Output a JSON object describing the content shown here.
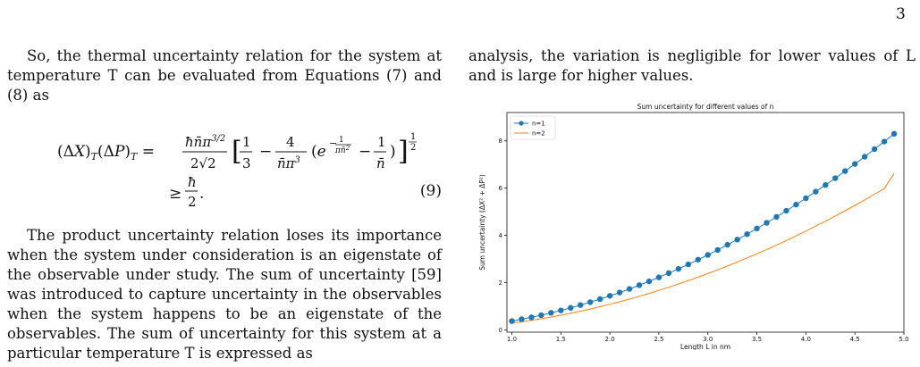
{
  "page": {
    "number": "3"
  },
  "left_column": {
    "para1": "So, the thermal uncertainty relation for the system at temperature T can be evaluated from Equations (7) and (8) as",
    "equation_number": "(9)",
    "para2": "The product uncertainty relation loses its importance when the system under consideration is an eigenstate of the observable under study. The sum of uncertainty [59] was introduced to capture uncertainty in the observables when the system happens to be an eigenstate of the observables. The sum of uncertainty for this system at a particular temperature T is expressed as"
  },
  "right_column": {
    "para1": "analysis, the variation is negligible for lower values of L and is large for higher values."
  },
  "chart_data": {
    "type": "line",
    "title": "Sum uncertainty for different values of n",
    "xlabel": "Length L in nm",
    "ylabel": "Sum uncertainty (ΔX² + ΔP²)",
    "xlim": [
      0.95,
      5.0
    ],
    "ylim": [
      -0.1,
      9.2
    ],
    "xticks": [
      "1.0",
      "1.5",
      "2.0",
      "2.5",
      "3.0",
      "3.5",
      "4.0",
      "4.5",
      "5.0"
    ],
    "yticks": [
      "0",
      "2",
      "4",
      "6",
      "8"
    ],
    "legend_position": "top-left",
    "series": [
      {
        "name": "n=1",
        "color": "#1f77b4",
        "marker": "circle",
        "x": [
          1.0,
          1.1,
          1.2,
          1.3,
          1.4,
          1.5,
          1.6,
          1.7,
          1.8,
          1.9,
          2.0,
          2.1,
          2.2,
          2.3,
          2.4,
          2.5,
          2.6,
          2.7,
          2.8,
          2.9,
          3.0,
          3.1,
          3.2,
          3.3,
          3.4,
          3.5,
          3.6,
          3.7,
          3.8,
          3.9,
          4.0,
          4.1,
          4.2,
          4.3,
          4.4,
          4.5,
          4.6,
          4.7,
          4.8,
          4.9
        ],
        "y": [
          0.37,
          0.45,
          0.53,
          0.62,
          0.72,
          0.82,
          0.93,
          1.05,
          1.17,
          1.3,
          1.44,
          1.58,
          1.73,
          1.89,
          2.05,
          2.22,
          2.4,
          2.58,
          2.77,
          2.97,
          3.17,
          3.38,
          3.6,
          3.82,
          4.05,
          4.29,
          4.53,
          4.78,
          5.04,
          5.3,
          5.57,
          5.85,
          6.13,
          6.42,
          6.72,
          7.02,
          7.33,
          7.65,
          7.97,
          8.3
        ]
      },
      {
        "name": "n=2",
        "color": "#ff7f0e",
        "marker": "none",
        "x": [
          1.0,
          1.1,
          1.2,
          1.3,
          1.4,
          1.5,
          1.6,
          1.7,
          1.8,
          1.9,
          2.0,
          2.1,
          2.2,
          2.3,
          2.4,
          2.5,
          2.6,
          2.7,
          2.8,
          2.9,
          3.0,
          3.1,
          3.2,
          3.3,
          3.4,
          3.5,
          3.6,
          3.7,
          3.8,
          3.9,
          4.0,
          4.1,
          4.2,
          4.3,
          4.4,
          4.5,
          4.6,
          4.7,
          4.8,
          4.9
        ],
        "y": [
          0.28,
          0.34,
          0.4,
          0.47,
          0.54,
          0.62,
          0.7,
          0.79,
          0.88,
          0.98,
          1.08,
          1.19,
          1.3,
          1.42,
          1.54,
          1.67,
          1.8,
          1.94,
          2.08,
          2.23,
          2.38,
          2.54,
          2.7,
          2.87,
          3.04,
          3.22,
          3.4,
          3.59,
          3.78,
          3.98,
          4.18,
          4.39,
          4.6,
          4.82,
          5.04,
          5.27,
          5.5,
          5.74,
          5.98,
          6.62
        ]
      }
    ]
  }
}
